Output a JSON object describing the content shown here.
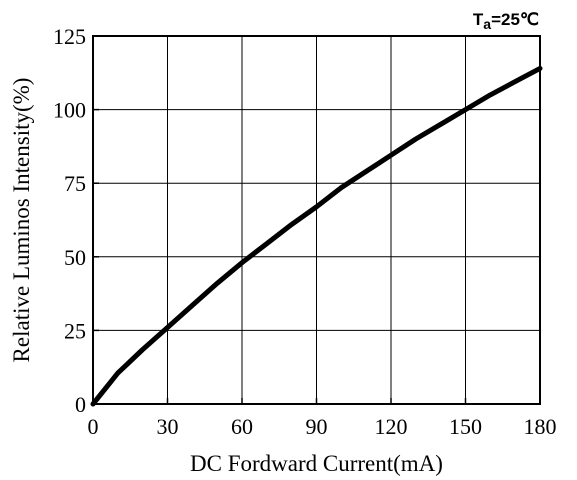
{
  "chart_data": {
    "type": "line",
    "title": "",
    "annotation": "Ta=25℃",
    "annotation_base": "T",
    "annotation_sub": "a",
    "annotation_rest": "=25℃",
    "xlabel": "DC Fordward Current(mA)",
    "ylabel": "Relative Luminos Intensity(%)",
    "xlim": [
      0,
      180
    ],
    "ylim": [
      0,
      125
    ],
    "xticks": [
      "0",
      "30",
      "60",
      "90",
      "120",
      "150",
      "180"
    ],
    "yticks": [
      "0",
      "25",
      "50",
      "75",
      "100",
      "125"
    ],
    "grid": true,
    "series": [
      {
        "x": [
          0,
          10,
          20,
          30,
          40,
          50,
          60,
          70,
          80,
          90,
          100,
          110,
          120,
          130,
          140,
          150,
          160,
          170,
          180
        ],
        "values": [
          0,
          10.5,
          18.5,
          26,
          33.5,
          41,
          48,
          54.5,
          61,
          67,
          73.5,
          79,
          84.5,
          90,
          95,
          100,
          105,
          109.5,
          114
        ]
      }
    ]
  }
}
